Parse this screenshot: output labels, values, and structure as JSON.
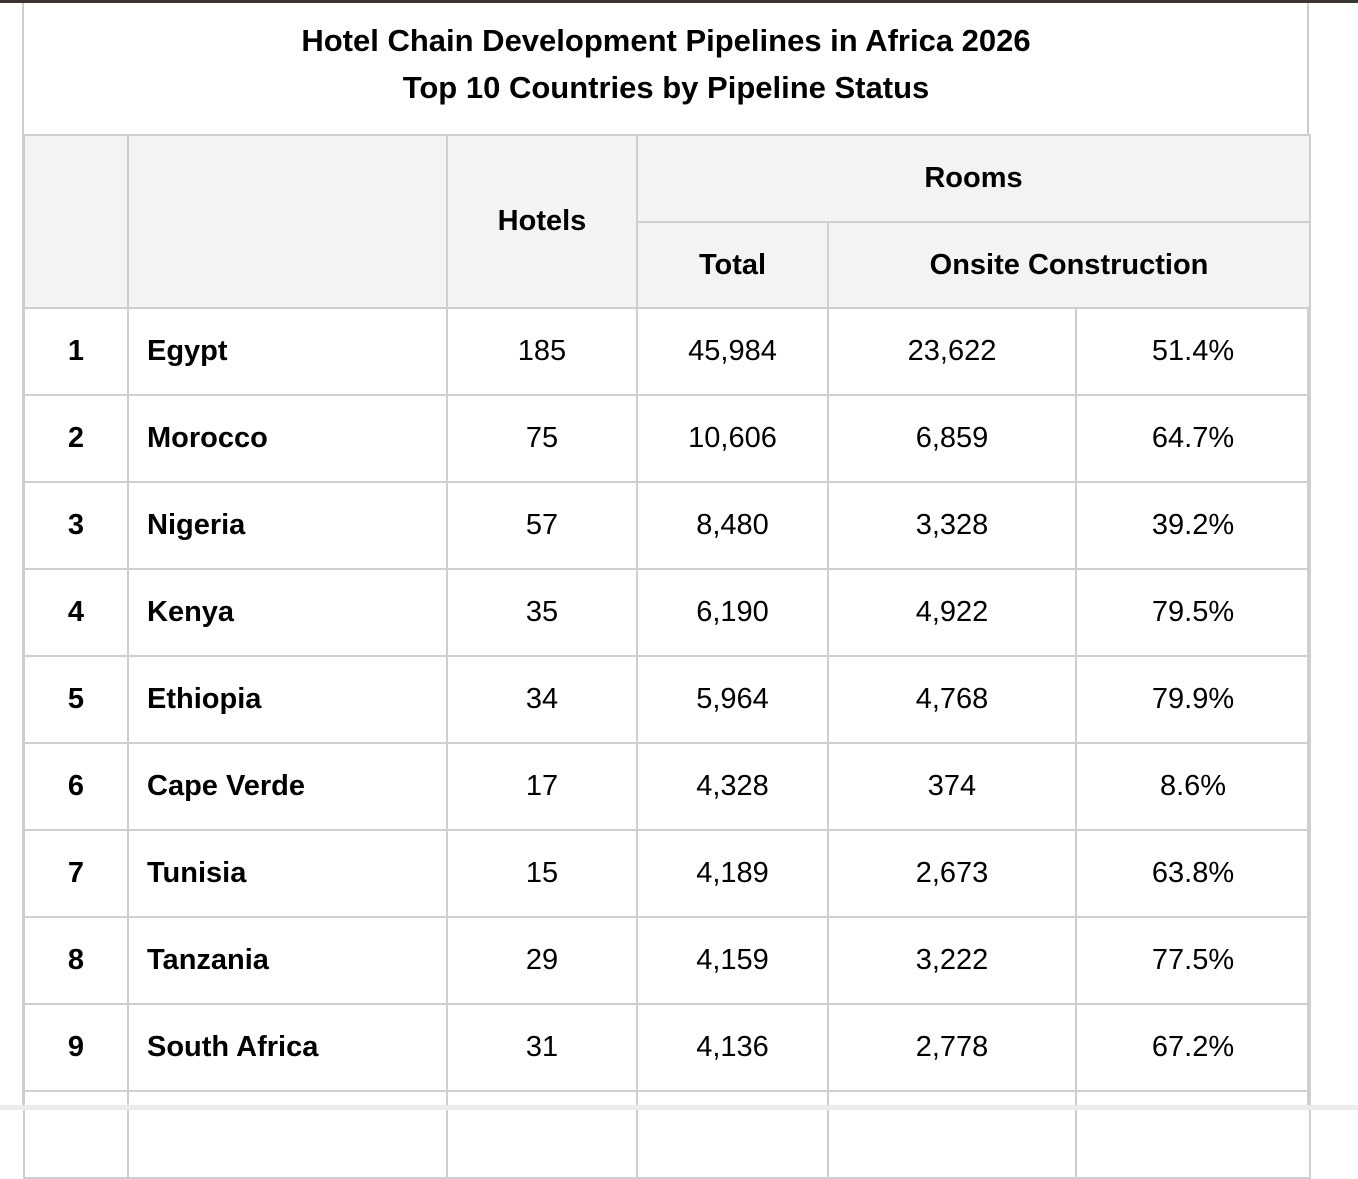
{
  "title": {
    "line1": "Hotel Chain Development Pipelines in Africa 2026",
    "line2": "Top 10 Countries by Pipeline Status"
  },
  "headers": {
    "hotels": "Hotels",
    "rooms": "Rooms",
    "total": "Total",
    "onsite": "Onsite Construction"
  },
  "rows": [
    {
      "rank": "1",
      "country": "Egypt",
      "hotels": "185",
      "total": "45,984",
      "onsite": "23,622",
      "pct": "51.4%"
    },
    {
      "rank": "2",
      "country": "Morocco",
      "hotels": "75",
      "total": "10,606",
      "onsite": "6,859",
      "pct": "64.7%"
    },
    {
      "rank": "3",
      "country": "Nigeria",
      "hotels": "57",
      "total": "8,480",
      "onsite": "3,328",
      "pct": "39.2%"
    },
    {
      "rank": "4",
      "country": "Kenya",
      "hotels": "35",
      "total": "6,190",
      "onsite": "4,922",
      "pct": "79.5%"
    },
    {
      "rank": "5",
      "country": "Ethiopia",
      "hotels": "34",
      "total": "5,964",
      "onsite": "4,768",
      "pct": "79.9%"
    },
    {
      "rank": "6",
      "country": "Cape Verde",
      "hotels": "17",
      "total": "4,328",
      "onsite": "374",
      "pct": "8.6%"
    },
    {
      "rank": "7",
      "country": "Tunisia",
      "hotels": "15",
      "total": "4,189",
      "onsite": "2,673",
      "pct": "63.8%"
    },
    {
      "rank": "8",
      "country": "Tanzania",
      "hotels": "29",
      "total": "4,159",
      "onsite": "3,222",
      "pct": "77.5%"
    },
    {
      "rank": "9",
      "country": "South Africa",
      "hotels": "31",
      "total": "4,136",
      "onsite": "2,778",
      "pct": "67.2%"
    }
  ]
}
